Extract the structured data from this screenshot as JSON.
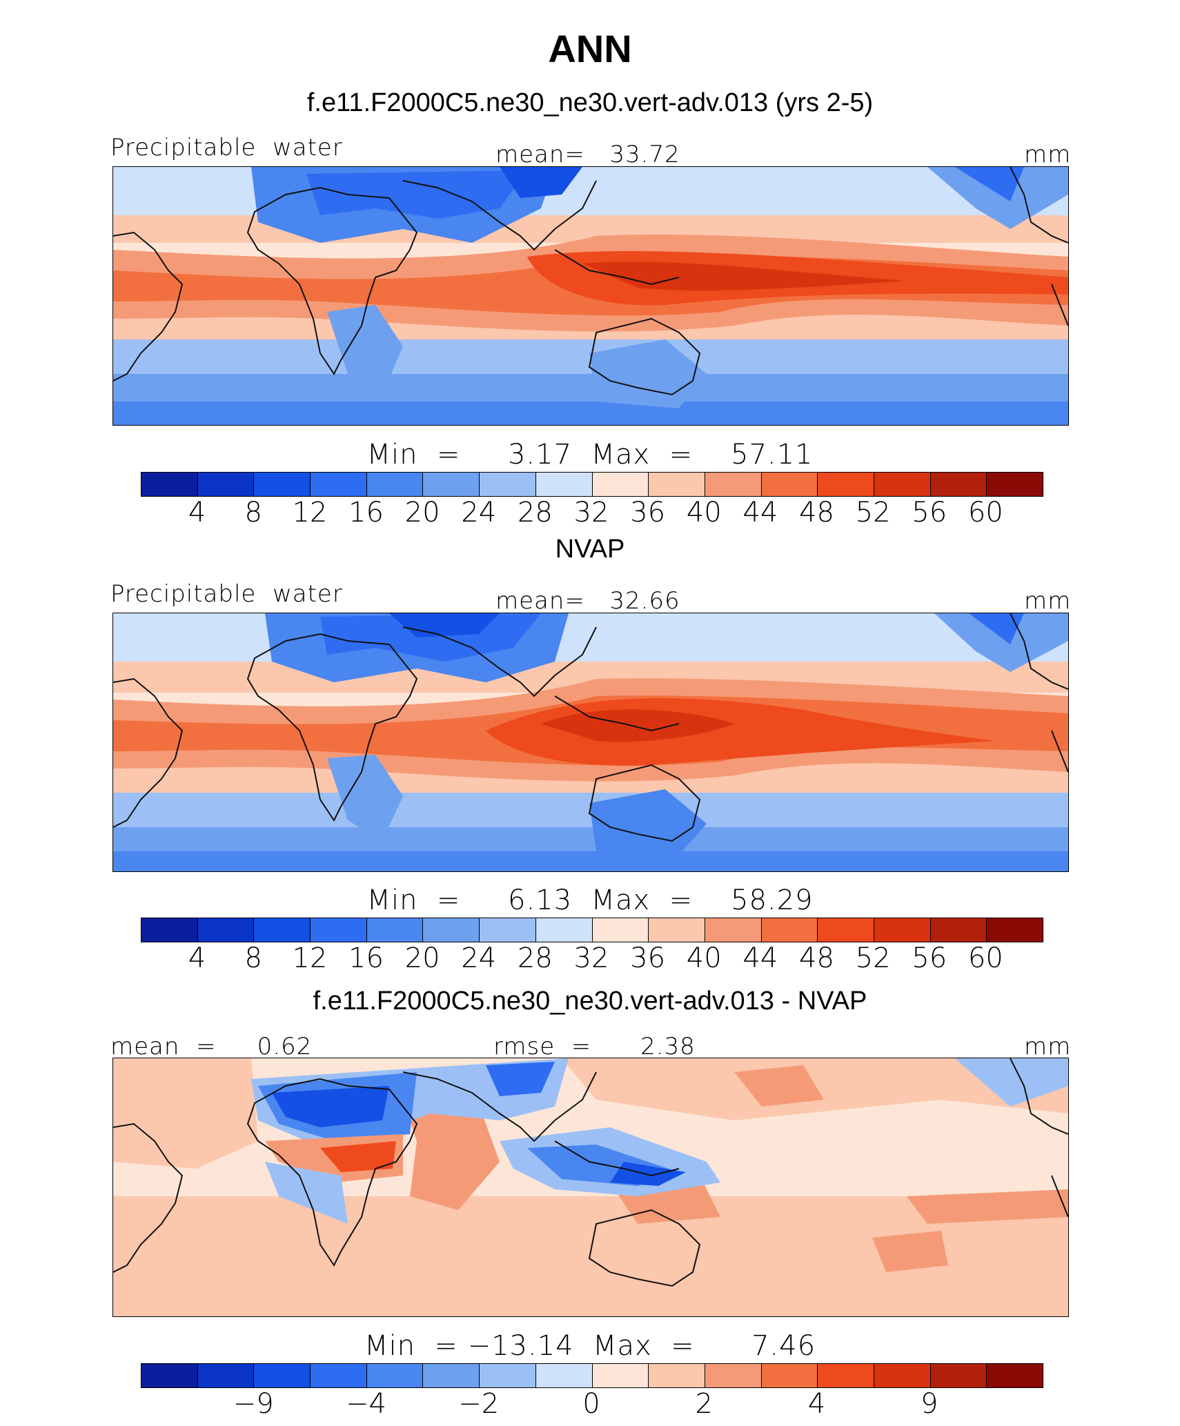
{
  "figure": {
    "title": "ANN"
  },
  "palettes": {
    "main": [
      "#0a1e9e",
      "#0b35c7",
      "#1450e6",
      "#2e6cf2",
      "#4a86f0",
      "#6ea0f0",
      "#9cc0f5",
      "#cfe2fb",
      "#fde6d8",
      "#fbc7ad",
      "#f59a77",
      "#f2703f",
      "#ee4a1d",
      "#d9320e",
      "#b3200c",
      "#8a0a05"
    ],
    "land_line": "#111111"
  },
  "panels": [
    {
      "title": "f.e11.F2000C5.ne30_ne30.vert-adv.013 (yrs 2-5)",
      "left_label": "Precipitable  water",
      "center_label": "mean=   33.72",
      "right_label": "mm",
      "stats": "Min  =     3.17  Max  =    57.11",
      "colorbar_ticks": [
        "4",
        "8",
        "12",
        "16",
        "20",
        "24",
        "28",
        "32",
        "36",
        "40",
        "44",
        "48",
        "52",
        "56",
        "60"
      ]
    },
    {
      "title": "NVAP",
      "left_label": "Precipitable  water",
      "center_label": "mean=   32.66",
      "right_label": "mm",
      "stats": "Min  =     6.13  Max  =    58.29",
      "colorbar_ticks": [
        "4",
        "8",
        "12",
        "16",
        "20",
        "24",
        "28",
        "32",
        "36",
        "40",
        "44",
        "48",
        "52",
        "56",
        "60"
      ]
    },
    {
      "title": "f.e11.F2000C5.ne30_ne30.vert-adv.013 - NVAP",
      "left_label": "mean  =     0.62",
      "center_label": "rmse  =      2.38",
      "right_label": "mm",
      "stats": "Min  = −13.14  Max  =      7.46",
      "colorbar_ticks": [
        "−9",
        "−4",
        "−2",
        "0",
        "2",
        "4",
        "9"
      ]
    }
  ]
}
